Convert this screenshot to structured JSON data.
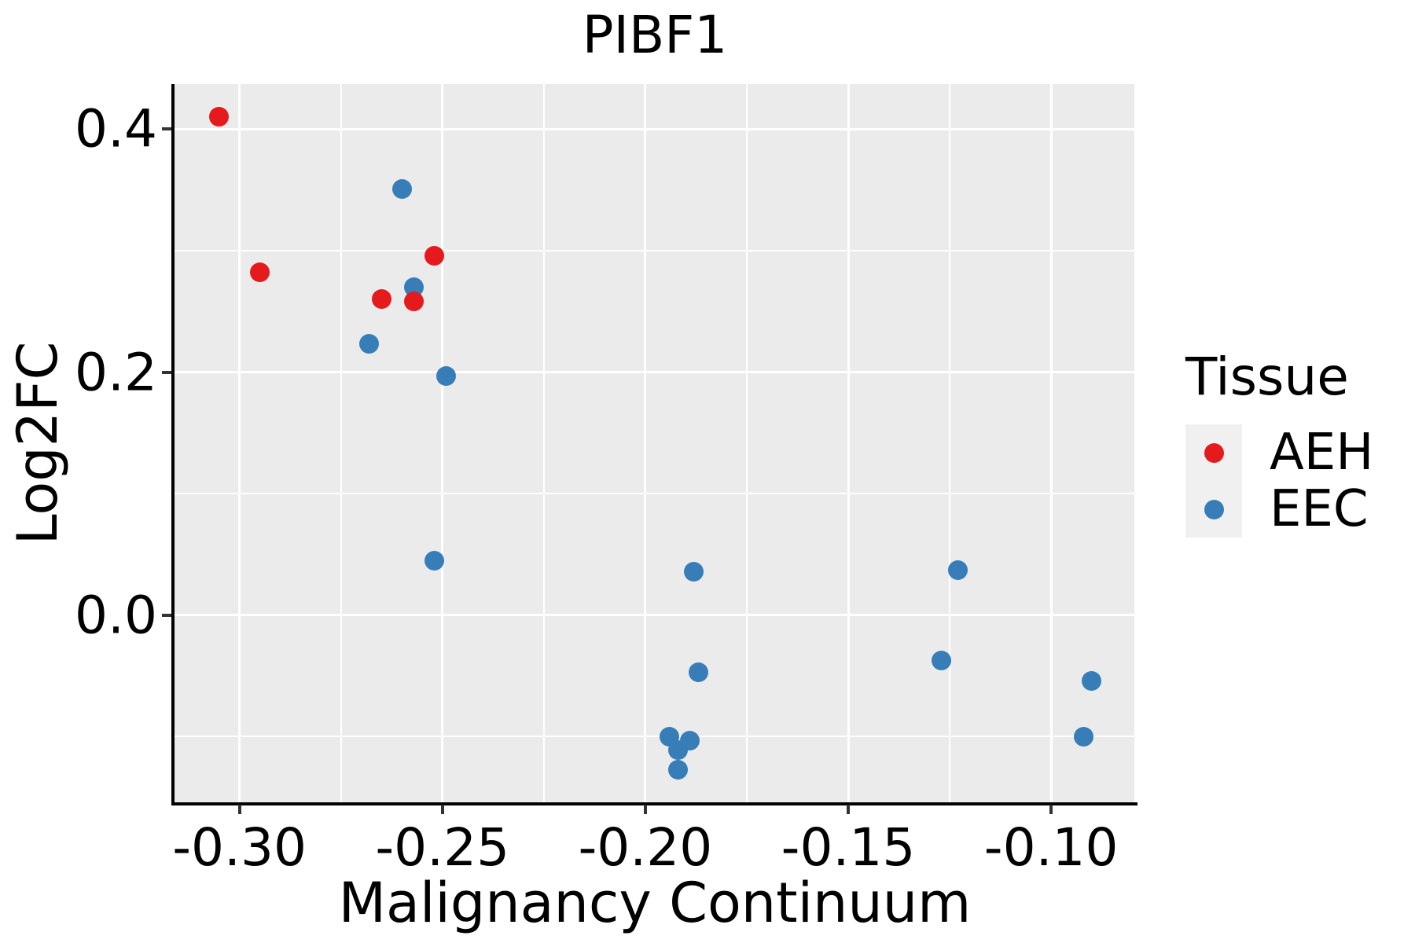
{
  "chart_data": {
    "type": "scatter",
    "title": "PIBF1",
    "xlabel": "Malignancy Continuum",
    "ylabel": "Log2FC",
    "legend_title": "Tissue",
    "legend_position": "right",
    "grid": "on",
    "xlim": [
      -0.316,
      -0.0795
    ],
    "ylim": [
      -0.154,
      0.437
    ],
    "x_major_ticks": [
      -0.3,
      -0.25,
      -0.2,
      -0.15,
      -0.1
    ],
    "x_tick_labels": [
      "-0.30",
      "-0.25",
      "-0.20",
      "-0.15",
      "-0.10"
    ],
    "x_minor_ticks": [
      -0.275,
      -0.225,
      -0.175,
      -0.125
    ],
    "y_major_ticks": [
      0.0,
      0.2,
      0.4
    ],
    "y_tick_labels": [
      "0.0",
      "0.2",
      "0.4"
    ],
    "y_minor_ticks": [
      -0.1,
      0.1,
      0.3
    ],
    "colors": {
      "panel_background": "#ebebeb",
      "gridline": "#ffffff",
      "axis_line": "#000000",
      "tick_mark": "#333333",
      "text": "#000000",
      "legend_key_background": "#f0f0f0",
      "aeh": "#e41a1c",
      "eec": "#377eb8"
    },
    "series": [
      {
        "name": "AEH",
        "color": "#e41a1c",
        "points": [
          [
            -0.305,
            0.41
          ],
          [
            -0.295,
            0.282
          ],
          [
            -0.265,
            0.26
          ],
          [
            -0.257,
            0.258
          ],
          [
            -0.252,
            0.296
          ]
        ]
      },
      {
        "name": "EEC",
        "color": "#377eb8",
        "points": [
          [
            -0.26,
            0.351
          ],
          [
            -0.257,
            0.27
          ],
          [
            -0.268,
            0.223
          ],
          [
            -0.249,
            0.197
          ],
          [
            -0.252,
            0.045
          ],
          [
            -0.188,
            0.036
          ],
          [
            -0.187,
            -0.047
          ],
          [
            -0.194,
            -0.1
          ],
          [
            -0.189,
            -0.103
          ],
          [
            -0.192,
            -0.111
          ],
          [
            -0.192,
            -0.127
          ],
          [
            -0.123,
            0.037
          ],
          [
            -0.127,
            -0.037
          ],
          [
            -0.09,
            -0.054
          ],
          [
            -0.092,
            -0.1
          ]
        ]
      }
    ]
  }
}
